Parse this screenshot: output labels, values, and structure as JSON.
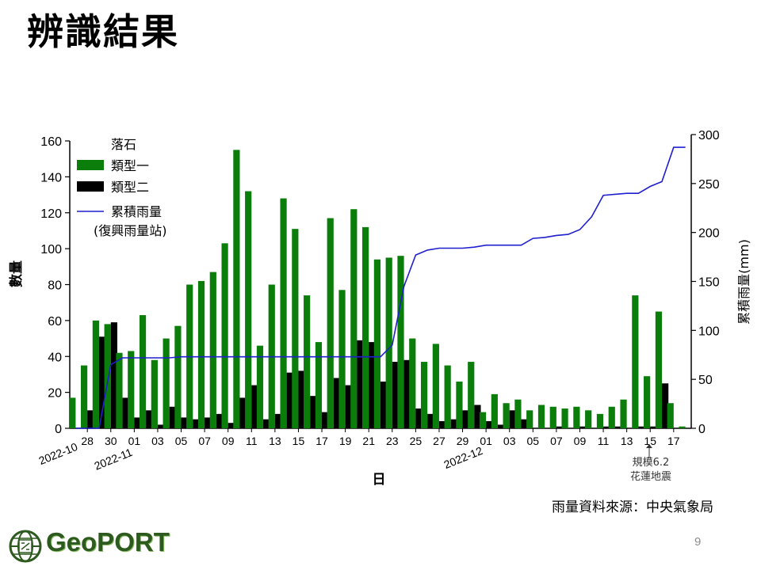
{
  "slide": {
    "title": "辨識結果",
    "source_note": "雨量資料來源：中央氣象局",
    "page_number": "9",
    "logo_text": "GeoPORT"
  },
  "chart_data": {
    "type": "bar",
    "title": "",
    "xlabel": "日",
    "ylabel": "數量",
    "y2label": "累積雨量(mm)",
    "ylim": [
      0,
      160
    ],
    "y2lim": [
      0,
      300
    ],
    "yticks": [
      0,
      20,
      40,
      60,
      80,
      100,
      120,
      140,
      160
    ],
    "y2ticks": [
      0,
      50,
      100,
      150,
      200,
      250,
      300
    ],
    "legend": {
      "title": "落石",
      "position": "top-left",
      "entries": [
        "類型一",
        "類型二",
        "累積雨量",
        "(復興雨量站)"
      ]
    },
    "colors": {
      "type1": "#0a7d0a",
      "type2": "#000000",
      "rain": "#1f1fd0"
    },
    "days": [
      "2022-10-27",
      "2022-10-28",
      "2022-10-29",
      "2022-10-30",
      "2022-10-31",
      "2022-11-01",
      "2022-11-02",
      "2022-11-03",
      "2022-11-04",
      "2022-11-05",
      "2022-11-06",
      "2022-11-07",
      "2022-11-08",
      "2022-11-09",
      "2022-11-10",
      "2022-11-11",
      "2022-11-12",
      "2022-11-13",
      "2022-11-14",
      "2022-11-15",
      "2022-11-16",
      "2022-11-17",
      "2022-11-18",
      "2022-11-19",
      "2022-11-20",
      "2022-11-21",
      "2022-11-22",
      "2022-11-23",
      "2022-11-24",
      "2022-11-25",
      "2022-11-26",
      "2022-11-27",
      "2022-11-28",
      "2022-11-29",
      "2022-11-30",
      "2022-12-01",
      "2022-12-02",
      "2022-12-03",
      "2022-12-04",
      "2022-12-05",
      "2022-12-06",
      "2022-12-07",
      "2022-12-08",
      "2022-12-09",
      "2022-12-10",
      "2022-12-11",
      "2022-12-12",
      "2022-12-13",
      "2022-12-14",
      "2022-12-15",
      "2022-12-16",
      "2022-12-17",
      "2022-12-18"
    ],
    "tick_labels": [
      "28",
      "30",
      "01",
      "03",
      "05",
      "07",
      "09",
      "11",
      "13",
      "15",
      "17",
      "19",
      "21",
      "23",
      "25",
      "27",
      "29",
      "01",
      "03",
      "05",
      "07",
      "09",
      "11",
      "13",
      "15",
      "17"
    ],
    "month_labels": [
      "2022-10",
      "2022-11",
      "2022-12"
    ],
    "series": [
      {
        "name": "類型一",
        "values": [
          17,
          35,
          60,
          58,
          42,
          43,
          63,
          38,
          50,
          57,
          80,
          82,
          87,
          103,
          155,
          132,
          46,
          80,
          128,
          111,
          74,
          48,
          117,
          77,
          122,
          112,
          94,
          95,
          96,
          50,
          37,
          47,
          35,
          26,
          37,
          9,
          19,
          14,
          16,
          10,
          13,
          12,
          11,
          12,
          10,
          8,
          12,
          16,
          74,
          29,
          65,
          14,
          1
        ]
      },
      {
        "name": "類型二",
        "values": [
          0,
          10,
          51,
          59,
          17,
          6,
          10,
          2,
          12,
          6,
          5,
          6,
          8,
          3,
          17,
          24,
          5,
          8,
          31,
          32,
          18,
          9,
          28,
          24,
          49,
          48,
          26,
          37,
          38,
          11,
          8,
          4,
          5,
          10,
          13,
          4,
          2,
          10,
          5,
          0,
          0,
          1,
          0,
          1,
          0,
          1,
          1,
          0,
          1,
          1,
          25,
          0,
          0
        ]
      },
      {
        "name": "累積雨量",
        "values": [
          0,
          0,
          0,
          65,
          72,
          72,
          72,
          72,
          72,
          73,
          73,
          73,
          73,
          73,
          73,
          73,
          73,
          73,
          73,
          73,
          73,
          73,
          73,
          73,
          73,
          73,
          73,
          85,
          145,
          177,
          182,
          184,
          184,
          184,
          185,
          187,
          187,
          187,
          187,
          194,
          195,
          197,
          198,
          203,
          216,
          238,
          239,
          240,
          240,
          247,
          252,
          287,
          287
        ]
      }
    ],
    "annotation": {
      "line1": "規模6.2",
      "line2": "花蓮地震",
      "at": "2022-12-15"
    }
  }
}
